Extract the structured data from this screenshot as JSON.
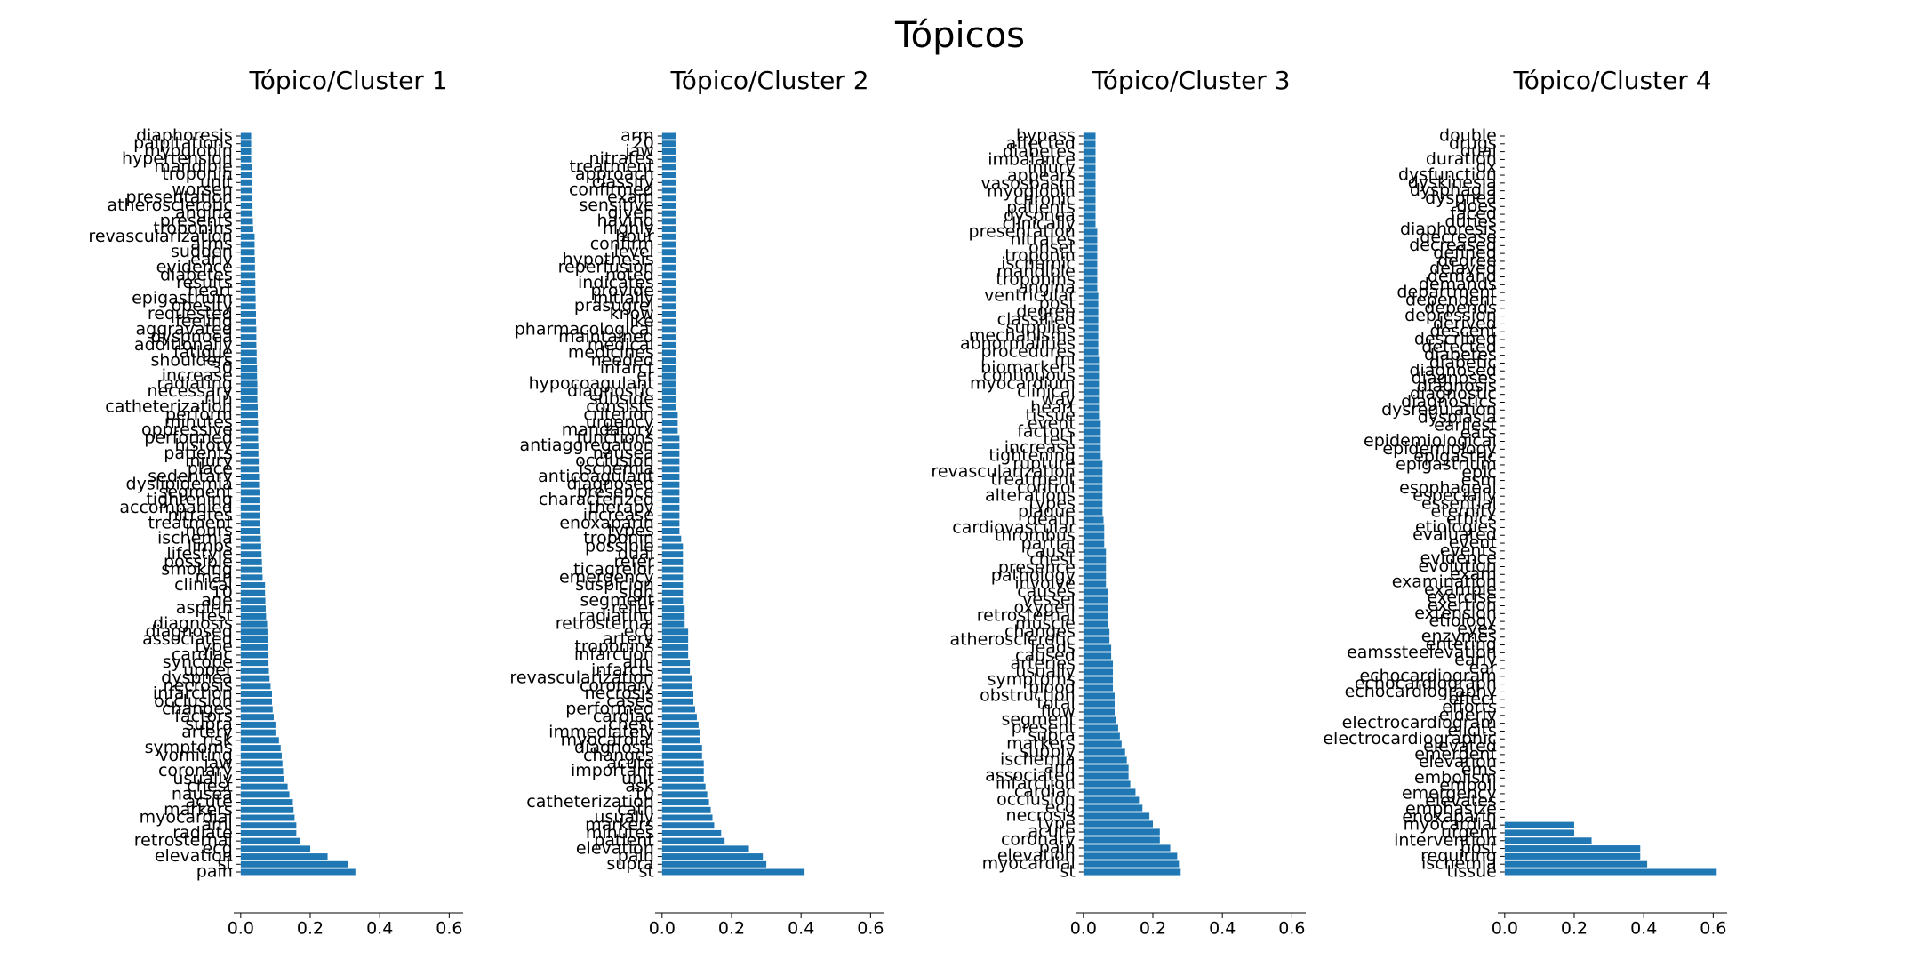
{
  "title": "Tópicos",
  "chart_data": [
    {
      "type": "barh",
      "title": "Tópico/Cluster 1",
      "color": "#1f77b4",
      "xlim": [
        -0.02,
        0.64
      ],
      "xticks": [
        {
          "value": 0,
          "label": "0.0"
        },
        0.2,
        0.4,
        0.6
      ],
      "categories": [
        "diaphoresis",
        "palpitations",
        "myoglobin",
        "hypertension",
        "mandible",
        "troponin",
        "unit",
        "worsen",
        "presentation",
        "atherosclerotic",
        "angina",
        "presents",
        "troponins",
        "revascularization",
        "arms",
        "sudden",
        "early",
        "evidence",
        "diabetes",
        "results",
        "heart",
        "epigastrium",
        "obesity",
        "requested",
        "feeling",
        "aggravated",
        "dyspnoea",
        "additionally",
        "fatigue",
        "shoulders",
        "30",
        "increase",
        "radiating",
        "necessary",
        "run",
        "catheterization",
        "perform",
        "minutes",
        "oppressive",
        "performed",
        "history",
        "patients",
        "injury",
        "place",
        "sedentary",
        "dyslipidemia",
        "segment",
        "tightening",
        "accompanied",
        "nitrates",
        "treatment",
        "hours",
        "ischemia",
        "limbs",
        "lifestyle",
        "possible",
        "smoking",
        "man",
        "clinical",
        "10",
        "age",
        "aspirin",
        "test",
        "diagnosis",
        "diagnosed",
        "associated",
        "type",
        "cardiac",
        "syncope",
        "upper",
        "dyspnea",
        "necrosis",
        "infarction",
        "occlusion",
        "changes",
        "factors",
        "supra",
        "artery",
        "risk",
        "symptoms",
        "vomiting",
        "jaw",
        "coronary",
        "usually",
        "chest",
        "nausea",
        "acute",
        "markers",
        "myocardial",
        "ami",
        "radiate",
        "retrosternal",
        "ecg",
        "elevation",
        "st",
        "pain"
      ],
      "values": [
        0.03,
        0.03,
        0.03,
        0.03,
        0.032,
        0.032,
        0.032,
        0.033,
        0.033,
        0.034,
        0.034,
        0.035,
        0.036,
        0.04,
        0.04,
        0.04,
        0.041,
        0.041,
        0.042,
        0.042,
        0.042,
        0.043,
        0.043,
        0.044,
        0.044,
        0.045,
        0.045,
        0.045,
        0.046,
        0.046,
        0.047,
        0.047,
        0.048,
        0.048,
        0.048,
        0.049,
        0.049,
        0.05,
        0.05,
        0.05,
        0.051,
        0.051,
        0.052,
        0.052,
        0.053,
        0.053,
        0.054,
        0.054,
        0.055,
        0.055,
        0.056,
        0.057,
        0.058,
        0.059,
        0.06,
        0.061,
        0.062,
        0.063,
        0.07,
        0.07,
        0.071,
        0.072,
        0.073,
        0.076,
        0.077,
        0.078,
        0.079,
        0.08,
        0.08,
        0.081,
        0.083,
        0.086,
        0.09,
        0.09,
        0.092,
        0.095,
        0.1,
        0.1,
        0.11,
        0.115,
        0.118,
        0.12,
        0.122,
        0.125,
        0.135,
        0.14,
        0.15,
        0.152,
        0.155,
        0.16,
        0.16,
        0.17,
        0.2,
        0.25,
        0.31,
        0.33
      ]
    },
    {
      "type": "barh",
      "title": "Tópico/Cluster 2",
      "color": "#1f77b4",
      "xlim": [
        -0.02,
        0.64
      ],
      "xticks": [
        {
          "value": 0,
          "label": "0.0"
        },
        0.2,
        0.4,
        0.6
      ],
      "categories": [
        "arm",
        "20",
        "jaw",
        "nitrates",
        "treatment",
        "approach",
        "classify",
        "confirmed",
        "exam",
        "sensitive",
        "given",
        "having",
        "highly",
        "hour",
        "confirm",
        "level",
        "hypothesis",
        "reperfusion",
        "noted",
        "indicates",
        "provide",
        "initially",
        "prasugrel",
        "know",
        "like",
        "pharmacological",
        "maintained",
        "medical",
        "medicines",
        "needed",
        "infarct",
        "er",
        "hypocoagulant",
        "diagnostic",
        "subside",
        "consists",
        "criterion",
        "urgency",
        "mandatory",
        "functions",
        "antiaggregation",
        "nausea",
        "occlusion",
        "ischemia",
        "anticoagulant",
        "diagnosed",
        "presence",
        "characterized",
        "therapy",
        "increase",
        "enoxaparin",
        "types",
        "troponin",
        "possible",
        "dual",
        "refer",
        "ticagrelor",
        "emergency",
        "suspicion",
        "sign",
        "segment",
        "relief",
        "radiating",
        "retrosternal",
        "ecg",
        "artery",
        "troponins",
        "infarction",
        "ami",
        "infarcts",
        "revascularization",
        "coronary",
        "necrosis",
        "cases",
        "performed",
        "cardiac",
        "chest",
        "immediately",
        "myocardial",
        "diagnosis",
        "changes",
        "acute",
        "important",
        "unit",
        "ask",
        "10",
        "catheterization",
        "cath",
        "usually",
        "markers",
        "minutes",
        "patient",
        "elevation",
        "pain",
        "supra",
        "st"
      ],
      "values": [
        0.04,
        0.04,
        0.04,
        0.04,
        0.04,
        0.04,
        0.04,
        0.04,
        0.04,
        0.04,
        0.04,
        0.04,
        0.04,
        0.04,
        0.04,
        0.04,
        0.04,
        0.04,
        0.04,
        0.04,
        0.04,
        0.04,
        0.04,
        0.04,
        0.04,
        0.04,
        0.04,
        0.04,
        0.04,
        0.04,
        0.04,
        0.04,
        0.04,
        0.04,
        0.04,
        0.04,
        0.045,
        0.045,
        0.045,
        0.05,
        0.05,
        0.05,
        0.05,
        0.05,
        0.05,
        0.05,
        0.05,
        0.05,
        0.05,
        0.05,
        0.05,
        0.05,
        0.055,
        0.06,
        0.06,
        0.06,
        0.06,
        0.06,
        0.06,
        0.06,
        0.06,
        0.065,
        0.065,
        0.065,
        0.075,
        0.075,
        0.075,
        0.075,
        0.08,
        0.08,
        0.085,
        0.085,
        0.09,
        0.09,
        0.095,
        0.1,
        0.105,
        0.11,
        0.11,
        0.115,
        0.115,
        0.12,
        0.12,
        0.12,
        0.125,
        0.13,
        0.135,
        0.14,
        0.145,
        0.15,
        0.17,
        0.18,
        0.25,
        0.29,
        0.3,
        0.41
      ]
    },
    {
      "type": "barh",
      "title": "Tópico/Cluster 3",
      "color": "#1f77b4",
      "xlim": [
        -0.02,
        0.64
      ],
      "xticks": [
        {
          "value": 0,
          "label": "0.0"
        },
        0.2,
        0.4,
        0.6
      ],
      "categories": [
        "bypass",
        "affected",
        "diabetes",
        "imbalance",
        "injury",
        "appears",
        "vasospasm",
        "myoglobin",
        "chronic",
        "patients",
        "dyspnea",
        "clinically",
        "presentation",
        "nitrates",
        "onset",
        "troponin",
        "ischemic",
        "mandible",
        "troponins",
        "angina",
        "ventricular",
        "post",
        "degree",
        "classified",
        "supplies",
        "mechanisms",
        "abnormalities",
        "procedures",
        "mi",
        "biomarkers",
        "continuous",
        "myocardium",
        "clinical",
        "way",
        "heart",
        "tissue",
        "event",
        "factors",
        "test",
        "increase",
        "tightening",
        "rupture",
        "revascularization",
        "treatment",
        "control",
        "alterations",
        "types",
        "plaque",
        "death",
        "cardiovascular",
        "thrombus",
        "partial",
        "cause",
        "chest",
        "presence",
        "pathology",
        "involve",
        "causes",
        "vessel",
        "oxygen",
        "retrosternal",
        "muscle",
        "changes",
        "atherosclerotic",
        "leads",
        "caused",
        "arteries",
        "usually",
        "symptoms",
        "blood",
        "obstruction",
        "total",
        "flow",
        "segment",
        "present",
        "supra",
        "markers",
        "supply",
        "ischemia",
        "ami",
        "associated",
        "infarction",
        "cardiac",
        "occlusion",
        "ecg",
        "necrosis",
        "type",
        "acute",
        "coronary",
        "pain",
        "elevation",
        "myocardial",
        "st"
      ],
      "values": [
        0.035,
        0.035,
        0.035,
        0.035,
        0.035,
        0.035,
        0.035,
        0.035,
        0.035,
        0.035,
        0.035,
        0.035,
        0.04,
        0.04,
        0.04,
        0.04,
        0.04,
        0.04,
        0.04,
        0.04,
        0.043,
        0.043,
        0.043,
        0.043,
        0.043,
        0.043,
        0.043,
        0.043,
        0.045,
        0.045,
        0.045,
        0.045,
        0.045,
        0.045,
        0.045,
        0.045,
        0.05,
        0.05,
        0.05,
        0.05,
        0.05,
        0.055,
        0.055,
        0.055,
        0.055,
        0.055,
        0.055,
        0.055,
        0.058,
        0.06,
        0.06,
        0.06,
        0.065,
        0.065,
        0.065,
        0.065,
        0.065,
        0.07,
        0.07,
        0.07,
        0.07,
        0.07,
        0.075,
        0.075,
        0.08,
        0.08,
        0.085,
        0.085,
        0.085,
        0.085,
        0.09,
        0.09,
        0.09,
        0.095,
        0.1,
        0.105,
        0.11,
        0.12,
        0.125,
        0.13,
        0.13,
        0.135,
        0.15,
        0.16,
        0.17,
        0.19,
        0.2,
        0.22,
        0.22,
        0.25,
        0.27,
        0.275,
        0.28
      ]
    },
    {
      "type": "barh",
      "title": "Tópico/Cluster 4",
      "color": "#1f77b4",
      "xlim": [
        -0.02,
        0.64
      ],
      "xticks": [
        {
          "value": 0,
          "label": "0.0"
        },
        0.2,
        0.4,
        0.6
      ],
      "categories": [
        "double",
        "drugs",
        "dual",
        "duration",
        "dx",
        "dysfunction",
        "dyskinesia",
        "dysphagia",
        "dyspnea",
        "does",
        "faced",
        "duties",
        "diaphoresis",
        "decrease",
        "decreased",
        "defined",
        "degree",
        "delayed",
        "demand",
        "demands",
        "department",
        "dependent",
        "depends",
        "depression",
        "derived",
        "descent",
        "described",
        "detected",
        "diabetes",
        "diabetic",
        "diagnosed",
        "diagnoses",
        "diagnosis",
        "diagnostic",
        "diagnostics",
        "dysregulation",
        "dysplasia",
        "earliest",
        "ears",
        "epidemiological",
        "epidemiology",
        "epigastric",
        "epigastrium",
        "epic",
        "esm",
        "esophageal",
        "especially",
        "essential",
        "eternity",
        "ethics",
        "etiologies",
        "evaluated",
        "event",
        "events",
        "evidence",
        "evolution",
        "exam",
        "examination",
        "example",
        "exercise",
        "exertion",
        "extension",
        "etiology",
        "eyes",
        "enzymes",
        "entering",
        "eamssteelevation",
        "early",
        "ear",
        "echocardiogram",
        "echocardiograph",
        "echocardiography",
        "effect",
        "efforts",
        "elderly",
        "electrocardiogram",
        "elicits",
        "electrocardiographic",
        "elevated",
        "emergent",
        "elevation",
        "ems",
        "embolism",
        "emboli",
        "emergency",
        "elevates",
        "emphasize",
        "enoxaparin",
        "myocardial",
        "urgent",
        "intervention",
        "post",
        "requiring",
        "ischemia",
        "tissue"
      ],
      "values": [
        0,
        0,
        0,
        0,
        0,
        0,
        0,
        0,
        0,
        0,
        0,
        0,
        0,
        0,
        0,
        0,
        0,
        0,
        0,
        0,
        0,
        0,
        0,
        0,
        0,
        0,
        0,
        0,
        0,
        0,
        0,
        0,
        0,
        0,
        0,
        0,
        0,
        0,
        0,
        0,
        0,
        0,
        0,
        0,
        0,
        0,
        0,
        0,
        0,
        0,
        0,
        0,
        0,
        0,
        0,
        0,
        0,
        0,
        0,
        0,
        0,
        0,
        0,
        0,
        0,
        0,
        0,
        0,
        0,
        0,
        0,
        0,
        0,
        0,
        0,
        0,
        0,
        0,
        0,
        0,
        0,
        0,
        0,
        0,
        0,
        0,
        0,
        0,
        0.2,
        0.2,
        0.25,
        0.39,
        0.39,
        0.41,
        0.61
      ]
    }
  ]
}
